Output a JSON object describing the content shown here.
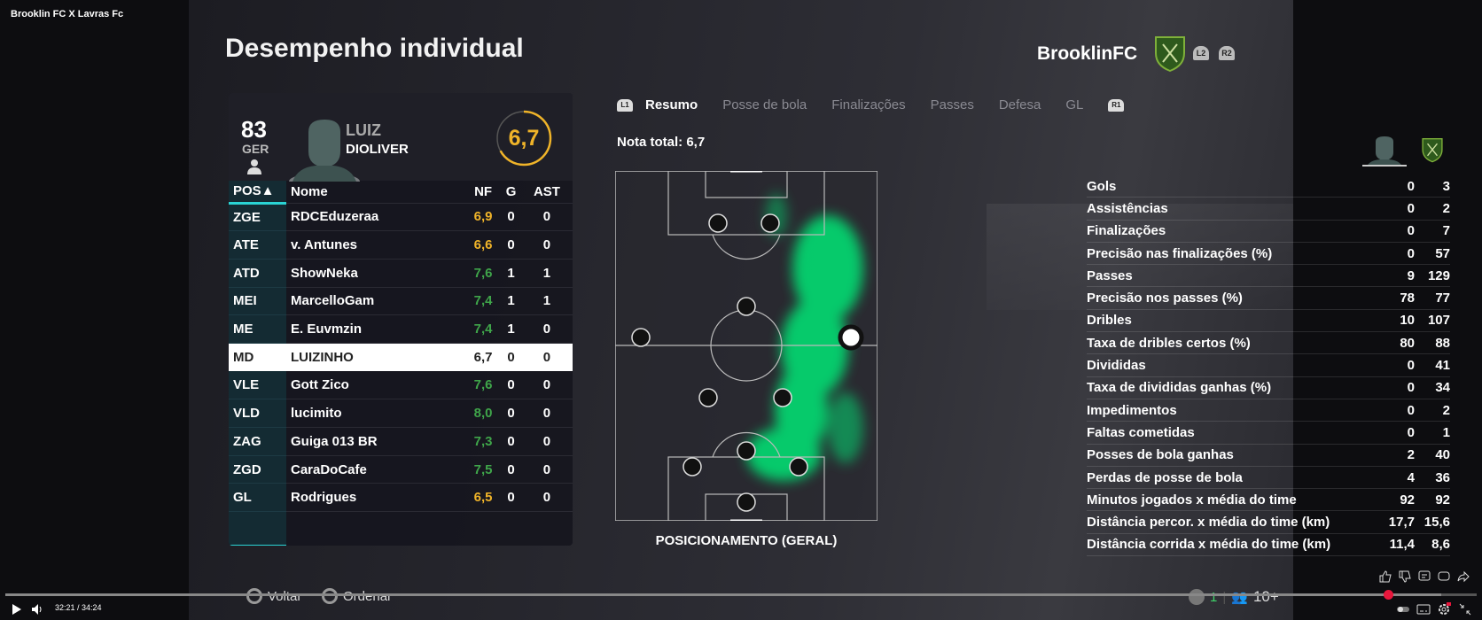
{
  "video": {
    "title": "Brooklin FC X Lavras Fc",
    "time": "32:21 / 34:24",
    "progress": 0.94
  },
  "screen": {
    "title": "Desempenho individual",
    "team": "BrooklinFC",
    "l2": "L2",
    "r2": "R2"
  },
  "player": {
    "overall": "83",
    "role": "GER",
    "first_name": "LUIZ",
    "last_name": "DIOLIVER",
    "rating": "6,7",
    "rating_fraction": 0.67
  },
  "table": {
    "headers": {
      "pos": "POS▲",
      "name": "Nome",
      "nf": "NF",
      "g": "G",
      "ast": "AST"
    },
    "rows": [
      {
        "pos": "ZGE",
        "name": "RDCEduzeraa",
        "nf": "6,9",
        "g": "0",
        "ast": "0",
        "color": "#f0b429"
      },
      {
        "pos": "ATE",
        "name": "v. Antunes",
        "nf": "6,6",
        "g": "0",
        "ast": "0",
        "color": "#f0b429"
      },
      {
        "pos": "ATD",
        "name": "ShowNeka",
        "nf": "7,6",
        "g": "1",
        "ast": "1",
        "color": "#3fa54a"
      },
      {
        "pos": "MEI",
        "name": "MarcelloGam",
        "nf": "7,4",
        "g": "1",
        "ast": "1",
        "color": "#3fa54a"
      },
      {
        "pos": "ME",
        "name": "E. Euvmzin",
        "nf": "7,4",
        "g": "1",
        "ast": "0",
        "color": "#3fa54a"
      },
      {
        "pos": "MD",
        "name": "LUIZINHO",
        "nf": "6,7",
        "g": "0",
        "ast": "0",
        "color": "#222222",
        "selected": true
      },
      {
        "pos": "VLE",
        "name": "Gott  Zico",
        "nf": "7,6",
        "g": "0",
        "ast": "0",
        "color": "#3fa54a"
      },
      {
        "pos": "VLD",
        "name": "lucimito",
        "nf": "8,0",
        "g": "0",
        "ast": "0",
        "color": "#3fa54a"
      },
      {
        "pos": "ZAG",
        "name": "Guiga 013 BR",
        "nf": "7,3",
        "g": "0",
        "ast": "0",
        "color": "#3fa54a"
      },
      {
        "pos": "ZGD",
        "name": "CaraDoCafe",
        "nf": "7,5",
        "g": "0",
        "ast": "0",
        "color": "#3fa54a"
      },
      {
        "pos": "GL",
        "name": "Rodrigues",
        "nf": "6,5",
        "g": "0",
        "ast": "0",
        "color": "#f0b429"
      }
    ]
  },
  "tabs": {
    "l1": "L1",
    "r1": "R1",
    "items": [
      "Resumo",
      "Posse de bola",
      "Finalizações",
      "Passes",
      "Defesa",
      "GL"
    ],
    "active": 0
  },
  "nota_total": "Nota total: 6,7",
  "pitch_label": "POSICIONAMENTO (GERAL)",
  "stats": [
    {
      "label": "Gols",
      "player": "0",
      "team": "3"
    },
    {
      "label": "Assistências",
      "player": "0",
      "team": "2"
    },
    {
      "label": "Finalizações",
      "player": "0",
      "team": "7"
    },
    {
      "label": "Precisão nas finalizações (%)",
      "player": "0",
      "team": "57"
    },
    {
      "label": "Passes",
      "player": "9",
      "team": "129"
    },
    {
      "label": "Precisão nos passes (%)",
      "player": "78",
      "team": "77"
    },
    {
      "label": "Dribles",
      "player": "10",
      "team": "107"
    },
    {
      "label": "Taxa de dribles certos (%)",
      "player": "80",
      "team": "88"
    },
    {
      "label": "Divididas",
      "player": "0",
      "team": "41"
    },
    {
      "label": "Taxa de divididas ganhas (%)",
      "player": "0",
      "team": "34"
    },
    {
      "label": "Impedimentos",
      "player": "0",
      "team": "2"
    },
    {
      "label": "Faltas cometidas",
      "player": "0",
      "team": "1"
    },
    {
      "label": "Posses de bola ganhas",
      "player": "2",
      "team": "40"
    },
    {
      "label": "Perdas de posse de bola",
      "player": "4",
      "team": "36"
    },
    {
      "label": "Minutos jogados x média do time",
      "player": "92",
      "team": "92"
    },
    {
      "label": "Distância percor. x média do time (km)",
      "player": "17,7",
      "team": "15,6"
    },
    {
      "label": "Distância corrida x média do time (km)",
      "player": "11,4",
      "team": "8,6"
    }
  ],
  "hints": {
    "back": "Voltar",
    "sort": "Ordenar"
  },
  "overlay": {
    "count": "1",
    "viewers": "10+"
  },
  "colors": {
    "accent": "#2ad4d4",
    "heat": "#00e676",
    "crest": "#2e5a1c",
    "progress": "#e8173c",
    "good": "#3fa54a",
    "avg": "#f0b429"
  }
}
